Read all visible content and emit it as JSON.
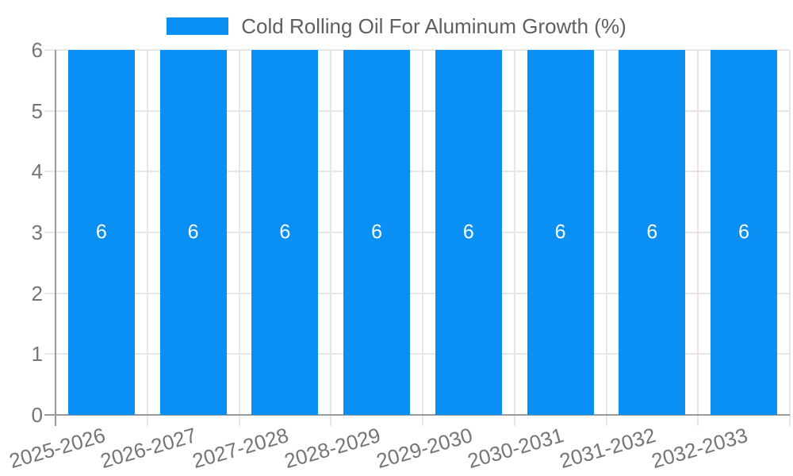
{
  "legend": {
    "label": "Cold Rolling Oil For Aluminum Growth (%)",
    "swatch_color": "#0A90F5",
    "position": "top-center"
  },
  "chart_data": {
    "type": "bar",
    "title": "Cold Rolling Oil For Aluminum Growth (%)",
    "categories": [
      "2025-2026",
      "2026-2027",
      "2027-2028",
      "2028-2029",
      "2029-2030",
      "2030-2031",
      "2031-2032",
      "2032-2033"
    ],
    "values": [
      6,
      6,
      6,
      6,
      6,
      6,
      6,
      6
    ],
    "bar_value_labels": [
      "6",
      "6",
      "6",
      "6",
      "6",
      "6",
      "6",
      "6"
    ],
    "xlabel": "",
    "ylabel": "",
    "ylim": [
      0,
      6
    ],
    "yticks": [
      0,
      1,
      2,
      3,
      4,
      5,
      6
    ],
    "grid": true,
    "x_label_rotation_deg": -16,
    "legend_position": "top",
    "colors": {
      "bar": "#0A90F5",
      "grid": "#E6E6E6",
      "axis": "#9A9A9A",
      "tick_label": "#757575",
      "legend_text": "#5F5F5F",
      "value_label": "#FFFFFF",
      "background": "#FFFFFF"
    }
  }
}
